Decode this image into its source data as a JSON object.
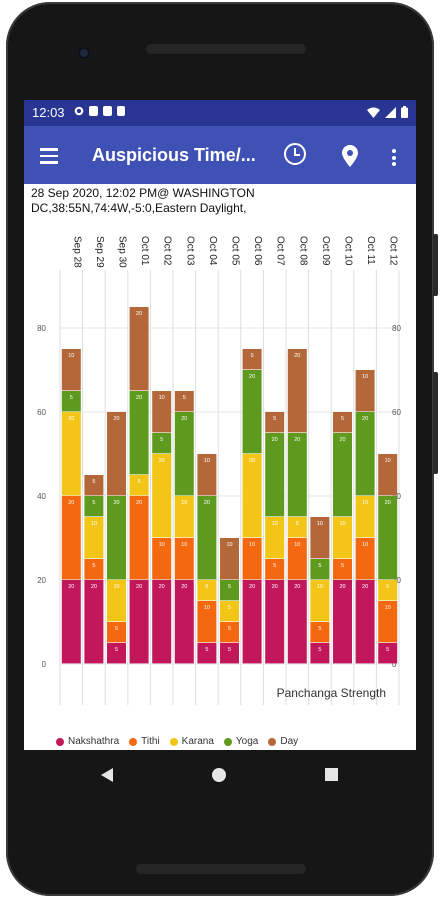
{
  "status_bar": {
    "time": "12:03"
  },
  "app_bar": {
    "title": "Auspicious Time/..."
  },
  "header": {
    "line1": "28 Sep 2020, 12:02 PM@ WASHINGTON",
    "line2": "DC,38:55N,74:4W,-5:0,Eastern Daylight,"
  },
  "colors": {
    "status_bar": "#283593",
    "app_bar": "#3f51b5",
    "Nakshathra": "#c2185b",
    "Tithi": "#f4680f",
    "Karana": "#f3c517",
    "Yoga": "#5e9a1e",
    "Day": "#b4683a"
  },
  "chart_data": {
    "type": "bar",
    "stacked": true,
    "categories": [
      "Sep 28",
      "Sep 29",
      "Sep 30",
      "Oct 01",
      "Oct 02",
      "Oct 03",
      "Oct 04",
      "Oct 05",
      "Oct 06",
      "Oct 07",
      "Oct 08",
      "Oct 09",
      "Oct 10",
      "Oct 11",
      "Oct 12"
    ],
    "series": [
      {
        "name": "Nakshathra",
        "values": [
          20,
          20,
          5,
          20,
          20,
          20,
          5,
          5,
          20,
          20,
          20,
          5,
          20,
          20,
          5
        ]
      },
      {
        "name": "Tithi",
        "values": [
          20,
          5,
          5,
          20,
          10,
          10,
          10,
          5,
          10,
          5,
          10,
          5,
          5,
          10,
          10
        ]
      },
      {
        "name": "Karana",
        "values": [
          20,
          10,
          10,
          5,
          20,
          10,
          5,
          5,
          20,
          10,
          5,
          10,
          10,
          10,
          5
        ]
      },
      {
        "name": "Yoga",
        "values": [
          5,
          5,
          20,
          20,
          5,
          20,
          20,
          5,
          20,
          20,
          20,
          5,
          20,
          20,
          20
        ]
      },
      {
        "name": "Day",
        "values": [
          10,
          5,
          20,
          20,
          10,
          5,
          10,
          10,
          5,
          5,
          20,
          10,
          5,
          10,
          10
        ]
      }
    ],
    "ylim": [
      0,
      90
    ],
    "yticks": [
      0,
      20,
      40,
      60,
      80
    ],
    "grid": true,
    "legend_position": "bottom",
    "annotation": "Panchanga Strength"
  }
}
